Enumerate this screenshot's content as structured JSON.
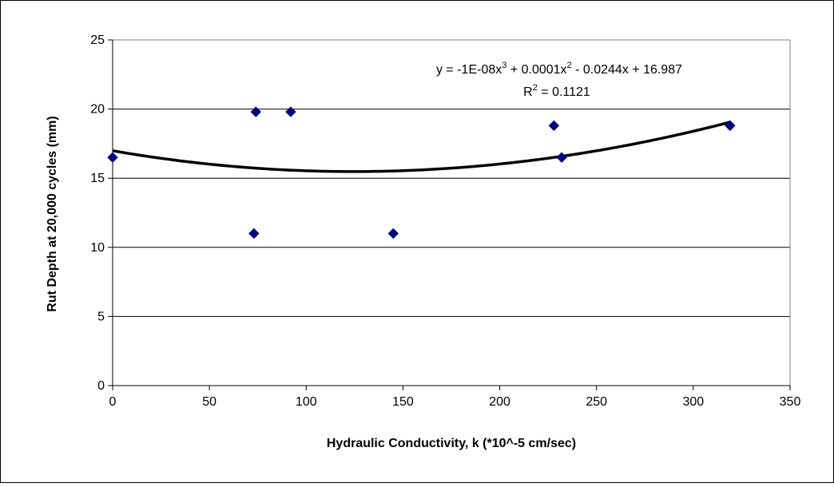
{
  "chart_data": {
    "type": "scatter",
    "title": "",
    "xlabel": "Hydraulic Conductivity, k (*10^-5 cm/sec)",
    "ylabel": "Rut Depth at 20,000 cycles (mm)",
    "xlim": [
      0,
      350
    ],
    "ylim": [
      0,
      25
    ],
    "xticks": [
      "0",
      "50",
      "100",
      "150",
      "200",
      "250",
      "300",
      "350"
    ],
    "yticks": [
      "0",
      "5",
      "10",
      "15",
      "20",
      "25"
    ],
    "grid": "horizontal",
    "legend": "none",
    "marker_color": "#000080",
    "trendline_color": "#000000",
    "series": [
      {
        "points": [
          {
            "x": 0,
            "y": 16.5
          },
          {
            "x": 73,
            "y": 11.0
          },
          {
            "x": 74,
            "y": 19.8
          },
          {
            "x": 92,
            "y": 19.8
          },
          {
            "x": 145,
            "y": 11.0
          },
          {
            "x": 228,
            "y": 18.8
          },
          {
            "x": 232,
            "y": 16.5
          },
          {
            "x": 319,
            "y": 18.8
          }
        ]
      }
    ],
    "trendline": {
      "type": "polynomial",
      "coefficients": [
        -1e-08,
        0.0001,
        -0.0244,
        16.987
      ],
      "x_range": [
        0,
        319
      ],
      "equation": {
        "prefix": "y = -1E-08x",
        "exp1": "3",
        "mid1": " + 0.0001x",
        "exp2": "2",
        "suffix": " - 0.0244x + 16.987"
      },
      "r_squared": {
        "prefix": "R",
        "exp": "2",
        "suffix": " = 0.1121"
      }
    }
  }
}
